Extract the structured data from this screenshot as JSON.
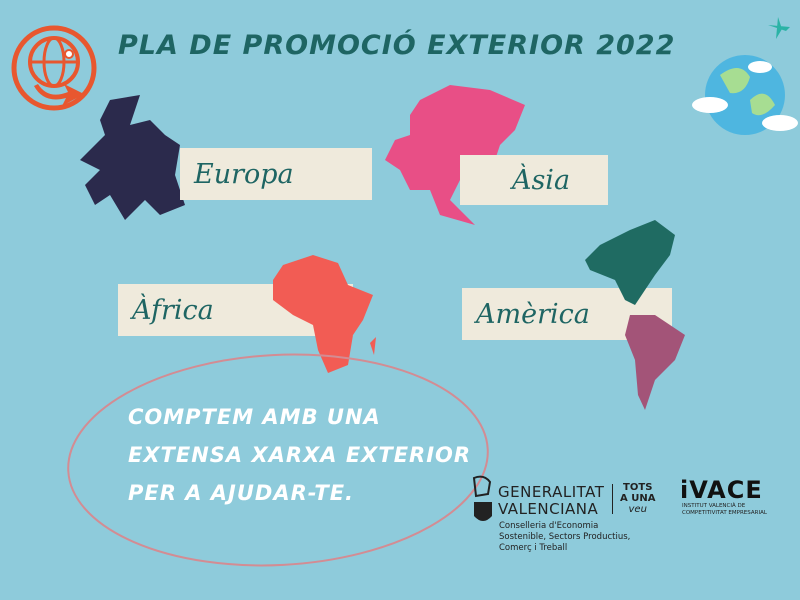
{
  "title": "PLA DE PROMOCIÓ EXTERIOR  2022",
  "regions": {
    "europe": "Europa",
    "asia": "Àsia",
    "africa": "Àfrica",
    "america": "Amèrica"
  },
  "message": "COMPTEM AMB UNA EXTENSA XARXA EXTERIOR PER A AJUDAR-TE.",
  "logos": {
    "gva_line1": "GENERALITAT",
    "gva_line2": "VALENCIANA",
    "tots": "TOTS",
    "auna": "A UNA",
    "veu": "veu",
    "conselleria": [
      "Conselleria d'Economia",
      "Sostenible, Sectors Productius,",
      "Comerç i Treball"
    ],
    "ivace": "iVACE",
    "ivace_sub": [
      "INSTITUT VALENCIÀ DE",
      "COMPETITIVITAT EMPRESARIAL"
    ]
  },
  "colors": {
    "background": "#8ecbdb",
    "title": "#1e6563",
    "europe": "#2b2a4c",
    "asia": "#e84f86",
    "africa": "#f25c54",
    "north_america": "#1f6b62",
    "south_america": "#a35478",
    "accent": "#e8572f"
  }
}
